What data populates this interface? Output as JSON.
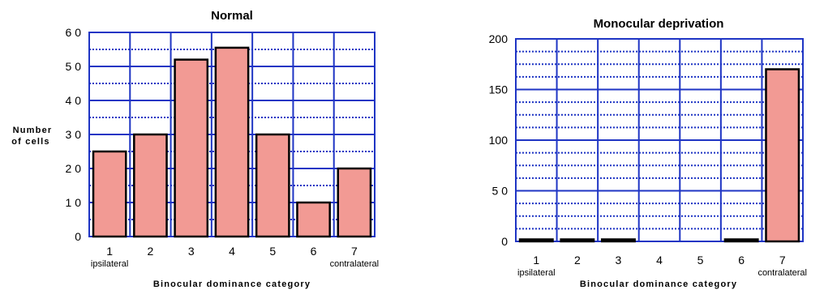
{
  "colors": {
    "bar_fill": "#f29a94",
    "bar_stroke": "#000000",
    "grid_major": "#1f35c4",
    "grid_minor": "#1f35c4",
    "frame": "#1f35c4"
  },
  "chart_data": [
    {
      "type": "bar",
      "title": "Normal",
      "categories": [
        "1",
        "2",
        "3",
        "4",
        "5",
        "6",
        "7"
      ],
      "category_sublabels": [
        "ipsilateral",
        "",
        "",
        "",
        "",
        "",
        "contralateral"
      ],
      "values": [
        25,
        30,
        52,
        55.5,
        30,
        10,
        20
      ],
      "xlabel": "Binocular dominance category",
      "ylabel": "Number of cells",
      "ylabel_lines": [
        "Number",
        "of cells"
      ],
      "ylim": [
        0,
        60
      ],
      "yticks": [
        "0",
        "1 0",
        "2 0",
        "3 0",
        "4 0",
        "5 0",
        "6 0"
      ],
      "grid": true
    },
    {
      "type": "bar",
      "title": "Monocular deprivation",
      "categories": [
        "1",
        "2",
        "3",
        "4",
        "5",
        "6",
        "7"
      ],
      "category_sublabels": [
        "ipsilateral",
        "",
        "",
        "",
        "",
        "",
        "contralateral"
      ],
      "values": [
        2,
        2,
        2,
        0,
        0,
        2,
        170
      ],
      "xlabel": "Binocular dominance category",
      "ylabel": "",
      "ylim": [
        0,
        200
      ],
      "yticks": [
        "0",
        "5 0",
        "100",
        "150",
        "200"
      ],
      "grid": true
    }
  ]
}
